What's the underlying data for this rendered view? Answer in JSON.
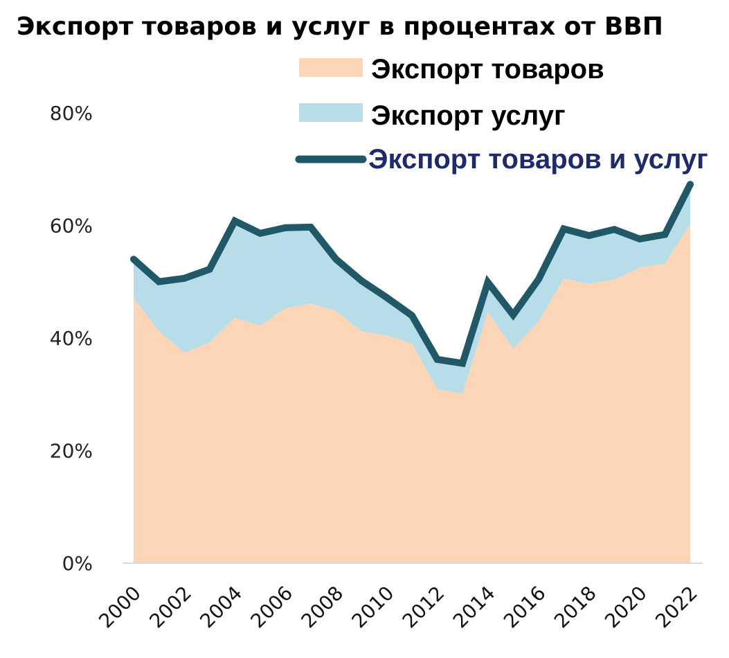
{
  "chart_data": {
    "type": "area",
    "title": "Экспорт товаров и услуг в процентах от ВВП",
    "xlabel": "",
    "ylabel": "",
    "ylim": [
      0,
      80
    ],
    "y_ticks": [
      "0%",
      "20%",
      "40%",
      "60%",
      "80%"
    ],
    "x_tick_labels": [
      "2000",
      "2002",
      "2004",
      "2006",
      "2008",
      "2010",
      "2012",
      "2014",
      "2016",
      "2018",
      "2020",
      "2022"
    ],
    "x": [
      2000,
      2001,
      2002,
      2003,
      2004,
      2005,
      2006,
      2007,
      2008,
      2009,
      2010,
      2011,
      2012,
      2013,
      2014,
      2015,
      2016,
      2017,
      2018,
      2019,
      2020,
      2021,
      2022
    ],
    "series": [
      {
        "name": "Экспорт товаров",
        "kind": "stacked-area",
        "color": "#fbd5b5",
        "values": [
          47.2,
          41.2,
          37.4,
          39.2,
          43.6,
          42.2,
          45.3,
          46.1,
          44.8,
          41.2,
          40.5,
          39.0,
          30.9,
          30.1,
          44.6,
          38.1,
          42.9,
          50.6,
          49.6,
          50.4,
          52.5,
          53.2,
          60.3
        ]
      },
      {
        "name": "Экспорт услуг",
        "kind": "stacked-area",
        "color": "#b7dde8",
        "values": [
          6.8,
          8.8,
          13.2,
          13.0,
          17.2,
          16.4,
          14.3,
          13.6,
          9.2,
          9.0,
          6.7,
          5.0,
          5.3,
          5.4,
          5.3,
          6.0,
          7.5,
          8.8,
          8.6,
          8.9,
          5.1,
          5.2,
          7.0
        ]
      },
      {
        "name": "Экспорт товаров и услуг",
        "kind": "line",
        "color": "#215868",
        "values": [
          54.0,
          50.0,
          50.6,
          52.2,
          60.8,
          58.6,
          59.6,
          59.7,
          54.0,
          50.2,
          47.2,
          44.0,
          36.2,
          35.5,
          49.9,
          44.1,
          50.4,
          59.4,
          58.2,
          59.3,
          57.6,
          58.4,
          67.3
        ]
      }
    ],
    "legend_position": "top-right",
    "grid": false
  }
}
